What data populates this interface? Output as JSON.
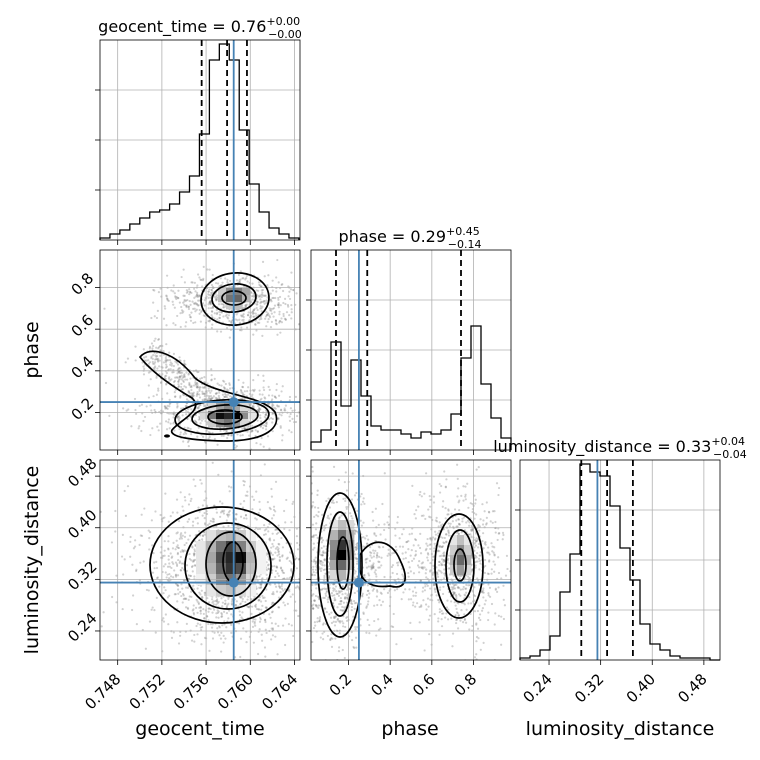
{
  "chart_data": {
    "type": "corner",
    "parameters": [
      {
        "key": "geocent_time",
        "label": "geocent_time",
        "range": [
          0.7464,
          0.7645
        ],
        "ticks": [
          "0.748",
          "0.752",
          "0.756",
          "0.760",
          "0.764"
        ],
        "tick_values": [
          0.748,
          0.752,
          0.756,
          0.76,
          0.764
        ]
      },
      {
        "key": "phase",
        "label": "phase",
        "range": [
          0.02,
          0.98
        ],
        "ticks": [
          "0.2",
          "0.4",
          "0.6",
          "0.8"
        ],
        "tick_values": [
          0.2,
          0.4,
          0.6,
          0.8
        ]
      },
      {
        "key": "luminosity_distance",
        "label": "luminosity_distance",
        "range": [
          0.195,
          0.505
        ],
        "ticks": [
          "0.24",
          "0.32",
          "0.40",
          "0.48"
        ],
        "tick_values": [
          0.24,
          0.32,
          0.4,
          0.48
        ]
      }
    ],
    "titles": [
      {
        "name": "geocent_time",
        "median": "0.76",
        "plus": "+0.00",
        "minus": "−0.00",
        "text": "geocent_time = 0.76"
      },
      {
        "name": "phase",
        "median": "0.29",
        "plus": "+0.45",
        "minus": "−0.14",
        "text": "phase = 0.29"
      },
      {
        "name": "luminosity_distance",
        "median": "0.33",
        "plus": "+0.04",
        "minus": "−0.04",
        "text": "luminosity_distance = 0.33"
      }
    ],
    "truths": {
      "geocent_time": 0.7585,
      "phase": 0.25,
      "luminosity_distance": 0.315
    },
    "quantiles": {
      "geocent_time": [
        0.7556,
        0.7579,
        0.7597
      ],
      "phase": [
        0.14,
        0.29,
        0.74
      ],
      "luminosity_distance": [
        0.29,
        0.33,
        0.37
      ]
    },
    "histograms": {
      "geocent_time": {
        "edges_start": 0.7464,
        "bin_width": 0.0009,
        "counts": [
          0.01,
          0.03,
          0.05,
          0.08,
          0.11,
          0.14,
          0.15,
          0.18,
          0.24,
          0.32,
          0.53,
          0.9,
          0.98,
          0.9,
          0.55,
          0.28,
          0.14,
          0.06,
          0.03,
          0.01
        ]
      },
      "phase": {
        "edges_start": 0.02,
        "bin_width": 0.048,
        "counts": [
          0.04,
          0.1,
          0.54,
          0.22,
          0.45,
          0.27,
          0.12,
          0.1,
          0.1,
          0.08,
          0.06,
          0.09,
          0.08,
          0.1,
          0.18,
          0.46,
          0.62,
          0.33,
          0.16,
          0.06
        ]
      },
      "luminosity_distance": {
        "edges_start": 0.195,
        "bin_width": 0.0155,
        "counts": [
          0.01,
          0.02,
          0.05,
          0.12,
          0.34,
          0.53,
          0.98,
          0.94,
          0.92,
          0.77,
          0.56,
          0.4,
          0.18,
          0.08,
          0.05,
          0.02,
          0.01,
          0.01,
          0.01,
          0.0
        ]
      }
    },
    "grid": true,
    "xlabel": "",
    "ylabel": ""
  }
}
